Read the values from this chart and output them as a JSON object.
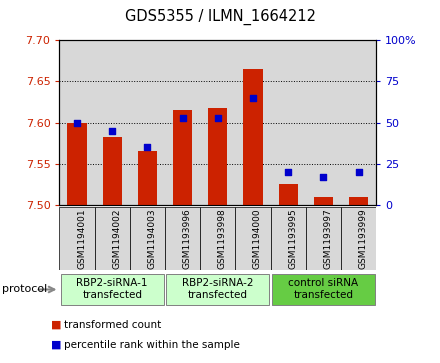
{
  "title": "GDS5355 / ILMN_1664212",
  "samples": [
    "GSM1194001",
    "GSM1194002",
    "GSM1194003",
    "GSM1193996",
    "GSM1193998",
    "GSM1194000",
    "GSM1193995",
    "GSM1193997",
    "GSM1193999"
  ],
  "red_values": [
    7.6,
    7.583,
    7.565,
    7.615,
    7.617,
    7.665,
    7.525,
    7.51,
    7.51
  ],
  "blue_values": [
    50,
    45,
    35,
    53,
    53,
    65,
    20,
    17,
    20
  ],
  "ylim_left": [
    7.5,
    7.7
  ],
  "ylim_right": [
    0,
    100
  ],
  "yticks_left": [
    7.5,
    7.55,
    7.6,
    7.65,
    7.7
  ],
  "yticks_right": [
    0,
    25,
    50,
    75,
    100
  ],
  "groups": [
    {
      "label": "RBP2-siRNA-1\ntransfected",
      "start": 0,
      "end": 3,
      "color": "#ccffcc"
    },
    {
      "label": "RBP2-siRNA-2\ntransfected",
      "start": 3,
      "end": 6,
      "color": "#ccffcc"
    },
    {
      "label": "control siRNA\ntransfected",
      "start": 6,
      "end": 9,
      "color": "#66cc44"
    }
  ],
  "protocol_label": "protocol",
  "bar_color": "#cc2200",
  "dot_color": "#0000cc",
  "legend_red": "transformed count",
  "legend_blue": "percentile rank within the sample",
  "bar_width": 0.55,
  "base_value": 7.5,
  "col_bg_color": "#d8d8d8",
  "plot_bg_color": "#ffffff"
}
